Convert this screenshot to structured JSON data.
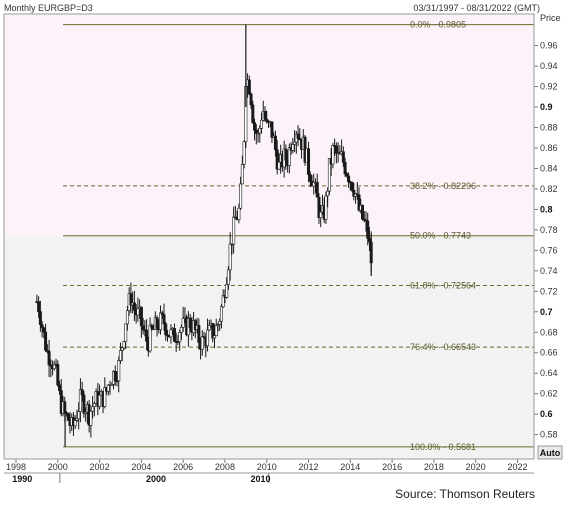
{
  "header": {
    "title": "Monthly EURGBP=D3",
    "range": "03/31/1997 - 08/31/2022 (GMT)"
  },
  "source": "Source: Thomson Reuters",
  "auto_label": "Auto",
  "colors": {
    "upper_band": "#fbf2fa",
    "lower_band": "#f2f2f2",
    "fib_line": "#6b6b2a",
    "candle_up": "#ffffff",
    "candle_down": "#1a1a1a"
  },
  "chart_data": {
    "type": "candlestick",
    "title": "Monthly EURGBP=D3",
    "ylabel": "Price",
    "xlim": [
      1998,
      2022.6
    ],
    "ylim": [
      0.565,
      0.985
    ],
    "grid": false,
    "x_ticks": [
      1998,
      2000,
      2002,
      2004,
      2006,
      2008,
      2010,
      2012,
      2014,
      2016,
      2018,
      2020,
      2022
    ],
    "y_ticks": [
      {
        "value": 0.58,
        "label": "0.58",
        "bold": false
      },
      {
        "value": 0.6,
        "label": "0.6",
        "bold": true
      },
      {
        "value": 0.62,
        "label": "0.62",
        "bold": false
      },
      {
        "value": 0.64,
        "label": "0.64",
        "bold": false
      },
      {
        "value": 0.66,
        "label": "0.66",
        "bold": false
      },
      {
        "value": 0.68,
        "label": "0.68",
        "bold": false
      },
      {
        "value": 0.7,
        "label": "0.7",
        "bold": true
      },
      {
        "value": 0.72,
        "label": "0.72",
        "bold": false
      },
      {
        "value": 0.74,
        "label": "0.74",
        "bold": false
      },
      {
        "value": 0.76,
        "label": "0.76",
        "bold": false
      },
      {
        "value": 0.78,
        "label": "0.78",
        "bold": false
      },
      {
        "value": 0.8,
        "label": "0.8",
        "bold": true
      },
      {
        "value": 0.82,
        "label": "0.82",
        "bold": false
      },
      {
        "value": 0.84,
        "label": "0.84",
        "bold": false
      },
      {
        "value": 0.86,
        "label": "0.86",
        "bold": false
      },
      {
        "value": 0.88,
        "label": "0.88",
        "bold": false
      },
      {
        "value": 0.9,
        "label": "0.9",
        "bold": true
      },
      {
        "value": 0.92,
        "label": "0.92",
        "bold": false
      },
      {
        "value": 0.94,
        "label": "0.94",
        "bold": false
      },
      {
        "value": 0.96,
        "label": "0.96",
        "bold": false
      }
    ],
    "era_labels": [
      {
        "year": 1998.3,
        "label": "1990"
      },
      {
        "year": 2004.7,
        "label": "2000"
      },
      {
        "year": 2009.7,
        "label": "2010"
      }
    ],
    "era_dividers": [
      2000.1,
      2010.1
    ],
    "band_split_value": 0.7743,
    "fibonacci": [
      {
        "label": "0.0% - 0.9805",
        "value": 0.9805,
        "style": "solid"
      },
      {
        "label": "38.2% - 0.82296",
        "value": 0.82296,
        "style": "dashed"
      },
      {
        "label": "50.0% - 0.7743",
        "value": 0.7743,
        "style": "solid"
      },
      {
        "label": "61.8% - 0.72564",
        "value": 0.72564,
        "style": "dashed"
      },
      {
        "label": "76.4% - 0.66543",
        "value": 0.66543,
        "style": "dashed"
      },
      {
        "label": "100.0% - 0.5681",
        "value": 0.5681,
        "style": "solid"
      }
    ],
    "series": [
      {
        "type": "candlestick",
        "ohlc_keypoints": [
          [
            1999.0,
            0.71
          ],
          [
            1999.1,
            0.705
          ],
          [
            1999.3,
            0.68
          ],
          [
            1999.5,
            0.66
          ],
          [
            1999.7,
            0.655
          ],
          [
            1999.9,
            0.64
          ],
          [
            2000.1,
            0.615
          ],
          [
            2000.3,
            0.6
          ],
          [
            2000.5,
            0.595
          ],
          [
            2000.7,
            0.585
          ],
          [
            2000.9,
            0.6
          ],
          [
            2001.1,
            0.615
          ],
          [
            2001.3,
            0.61
          ],
          [
            2001.5,
            0.6
          ],
          [
            2001.7,
            0.61
          ],
          [
            2001.9,
            0.615
          ],
          [
            2002.1,
            0.615
          ],
          [
            2002.3,
            0.62
          ],
          [
            2002.5,
            0.635
          ],
          [
            2002.7,
            0.64
          ],
          [
            2002.9,
            0.645
          ],
          [
            2003.1,
            0.67
          ],
          [
            2003.3,
            0.7
          ],
          [
            2003.5,
            0.715
          ],
          [
            2003.7,
            0.7
          ],
          [
            2003.9,
            0.695
          ],
          [
            2004.1,
            0.68
          ],
          [
            2004.3,
            0.67
          ],
          [
            2004.5,
            0.68
          ],
          [
            2004.7,
            0.685
          ],
          [
            2004.9,
            0.69
          ],
          [
            2005.1,
            0.69
          ],
          [
            2005.3,
            0.68
          ],
          [
            2005.5,
            0.675
          ],
          [
            2005.7,
            0.68
          ],
          [
            2005.9,
            0.685
          ],
          [
            2006.1,
            0.685
          ],
          [
            2006.3,
            0.69
          ],
          [
            2006.5,
            0.685
          ],
          [
            2006.7,
            0.675
          ],
          [
            2006.9,
            0.67
          ],
          [
            2007.1,
            0.675
          ],
          [
            2007.3,
            0.68
          ],
          [
            2007.5,
            0.68
          ],
          [
            2007.7,
            0.69
          ],
          [
            2007.9,
            0.71
          ],
          [
            2008.1,
            0.74
          ],
          [
            2008.3,
            0.77
          ],
          [
            2008.5,
            0.79
          ],
          [
            2008.7,
            0.8
          ],
          [
            2008.9,
            0.86
          ],
          [
            2009.0,
            0.93
          ],
          [
            2009.2,
            0.92
          ],
          [
            2009.4,
            0.88
          ],
          [
            2009.6,
            0.87
          ],
          [
            2009.8,
            0.9
          ],
          [
            2010.0,
            0.88
          ],
          [
            2010.2,
            0.88
          ],
          [
            2010.4,
            0.86
          ],
          [
            2010.6,
            0.84
          ],
          [
            2010.8,
            0.85
          ],
          [
            2011.0,
            0.85
          ],
          [
            2011.2,
            0.87
          ],
          [
            2011.4,
            0.88
          ],
          [
            2011.6,
            0.87
          ],
          [
            2011.8,
            0.86
          ],
          [
            2012.0,
            0.84
          ],
          [
            2012.2,
            0.83
          ],
          [
            2012.4,
            0.81
          ],
          [
            2012.6,
            0.79
          ],
          [
            2012.8,
            0.8
          ],
          [
            2013.0,
            0.84
          ],
          [
            2013.2,
            0.86
          ],
          [
            2013.4,
            0.85
          ],
          [
            2013.6,
            0.85
          ],
          [
            2013.8,
            0.84
          ],
          [
            2014.0,
            0.83
          ],
          [
            2014.2,
            0.82
          ],
          [
            2014.4,
            0.8
          ],
          [
            2014.6,
            0.79
          ],
          [
            2014.8,
            0.78
          ],
          [
            2015.0,
            0.75
          ]
        ]
      }
    ]
  }
}
